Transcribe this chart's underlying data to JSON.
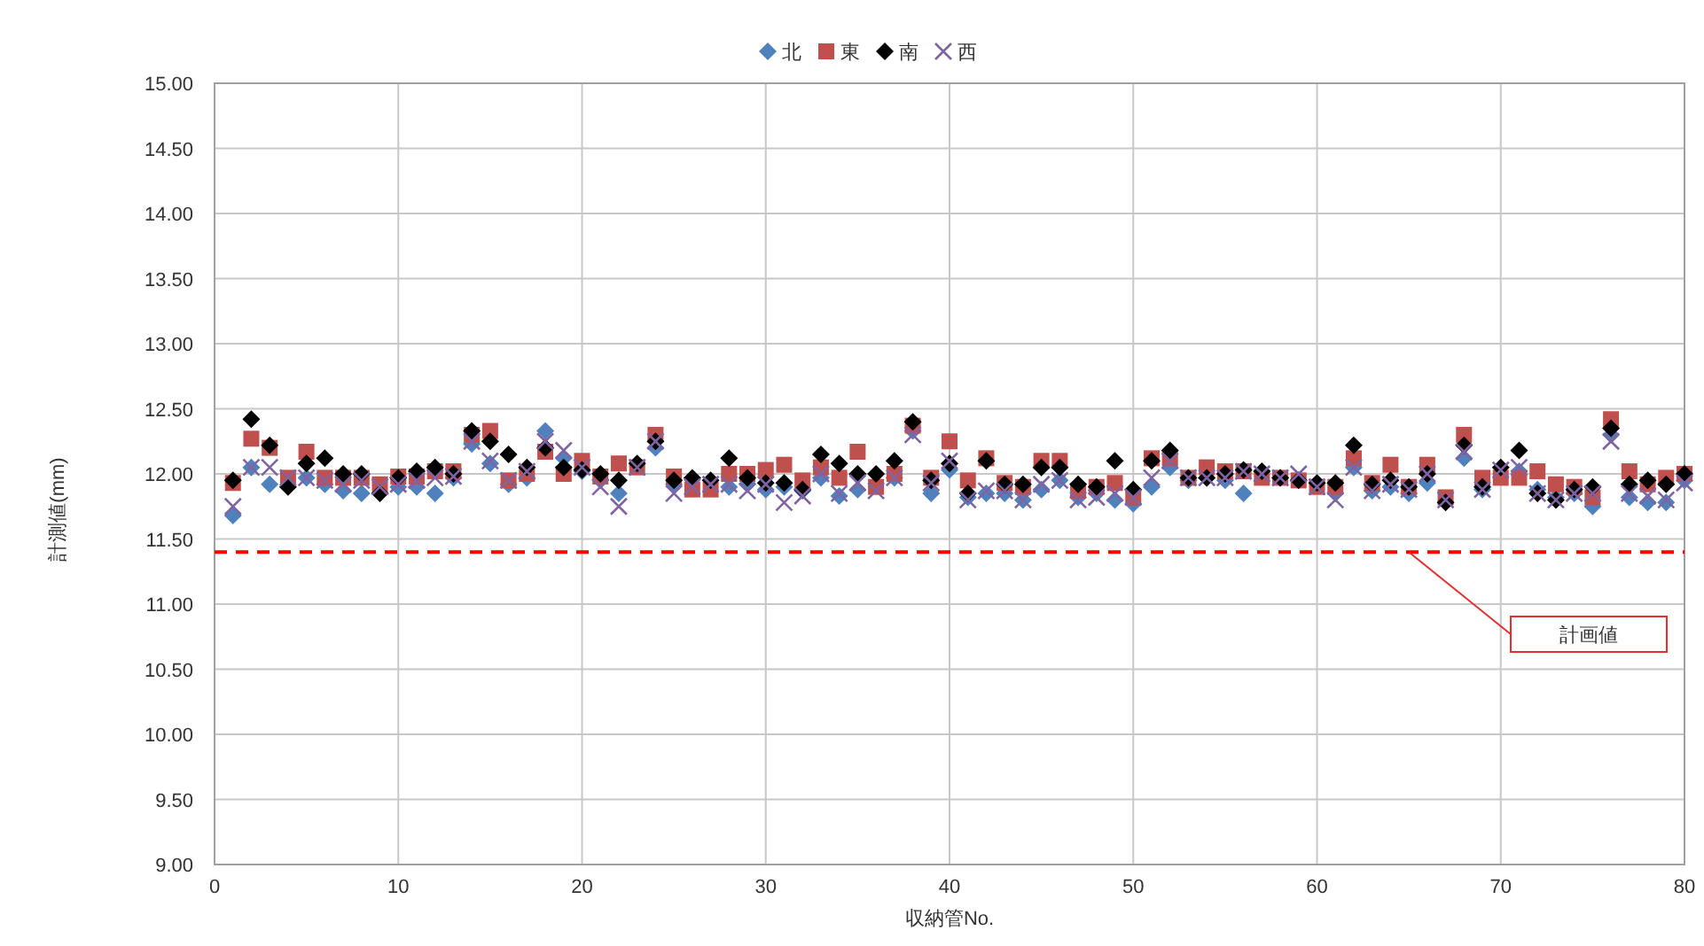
{
  "chart_data": {
    "type": "scatter",
    "xlabel": "収納管No.",
    "ylabel": "計測値(mm)",
    "xlim": [
      0,
      80
    ],
    "xticks": [
      0,
      10,
      20,
      30,
      40,
      50,
      60,
      70,
      80
    ],
    "ylim": [
      9,
      15
    ],
    "yticks": [
      {
        "value": 9,
        "label": "9.00"
      },
      {
        "value": 9.5,
        "label": "9.50"
      },
      {
        "value": 10,
        "label": "10.00"
      },
      {
        "value": 10.5,
        "label": "10.50"
      },
      {
        "value": 11,
        "label": "11.00"
      },
      {
        "value": 11.5,
        "label": "11.50"
      },
      {
        "value": 12,
        "label": "12.00"
      },
      {
        "value": 12.5,
        "label": "12.50"
      },
      {
        "value": 13,
        "label": "13.00"
      },
      {
        "value": 13.5,
        "label": "13.50"
      },
      {
        "value": 14,
        "label": "14.00"
      },
      {
        "value": 14.5,
        "label": "14.50"
      },
      {
        "value": 15,
        "label": "15.00"
      }
    ],
    "grid": true,
    "legend": "top",
    "x": [
      1,
      2,
      3,
      4,
      5,
      6,
      7,
      8,
      9,
      10,
      11,
      12,
      13,
      14,
      15,
      16,
      17,
      18,
      19,
      20,
      21,
      22,
      23,
      24,
      25,
      26,
      27,
      28,
      29,
      30,
      31,
      32,
      33,
      34,
      35,
      36,
      37,
      38,
      39,
      40,
      41,
      42,
      43,
      44,
      45,
      46,
      47,
      48,
      49,
      50,
      51,
      52,
      53,
      54,
      55,
      56,
      57,
      58,
      59,
      60,
      61,
      62,
      63,
      64,
      65,
      66,
      67,
      68,
      69,
      70,
      71,
      72,
      73,
      74,
      75,
      76,
      77,
      78,
      79,
      80
    ],
    "series": [
      {
        "name": "北",
        "color": "#4f81bd",
        "marker": "diamond",
        "values": [
          11.68,
          12.05,
          11.92,
          null,
          11.97,
          11.92,
          11.87,
          11.85,
          null,
          11.9,
          11.9,
          11.85,
          11.97,
          12.23,
          12.08,
          11.92,
          11.97,
          12.33,
          12.12,
          12.02,
          11.95,
          11.85,
          null,
          12.2,
          11.92,
          null,
          null,
          11.9,
          11.92,
          11.88,
          11.9,
          11.87,
          11.97,
          11.83,
          11.88,
          null,
          11.97,
          12.33,
          11.85,
          12.03,
          11.82,
          11.85,
          11.85,
          11.8,
          11.88,
          11.95,
          11.82,
          11.85,
          11.8,
          11.77,
          11.9,
          12.05,
          11.95,
          11.97,
          11.95,
          11.85,
          null,
          11.97,
          null,
          null,
          11.85,
          12.05,
          11.87,
          11.9,
          11.85,
          11.93,
          null,
          12.12,
          11.88,
          null,
          12.02,
          11.88,
          11.82,
          11.85,
          11.75,
          12.3,
          11.82,
          11.78,
          11.78,
          11.95
        ]
      },
      {
        "name": "東",
        "color": "#c0504d",
        "marker": "square",
        "values": [
          11.93,
          12.27,
          12.2,
          11.97,
          12.17,
          11.97,
          11.97,
          11.97,
          11.92,
          11.98,
          11.98,
          12.02,
          12.02,
          12.3,
          12.33,
          11.95,
          12.0,
          12.17,
          12.0,
          12.1,
          11.98,
          12.08,
          12.05,
          12.3,
          11.98,
          11.88,
          11.88,
          12.0,
          12.0,
          12.03,
          12.07,
          11.95,
          12.05,
          11.97,
          12.17,
          11.9,
          12.0,
          12.37,
          11.97,
          12.25,
          11.95,
          12.12,
          11.93,
          11.9,
          12.1,
          12.1,
          11.87,
          11.9,
          11.93,
          11.82,
          12.12,
          12.12,
          11.97,
          12.05,
          12.02,
          12.02,
          11.97,
          11.97,
          11.95,
          11.9,
          11.9,
          12.12,
          11.93,
          12.07,
          11.9,
          12.07,
          11.82,
          12.3,
          11.97,
          11.97,
          11.97,
          12.02,
          11.92,
          11.9,
          11.82,
          12.42,
          12.02,
          11.92,
          11.97,
          12.0
        ]
      },
      {
        "name": "南",
        "color": "#000000",
        "marker": "diamond",
        "values": [
          11.95,
          12.42,
          12.22,
          11.9,
          12.08,
          12.12,
          12.0,
          12.0,
          11.85,
          11.97,
          12.02,
          12.05,
          12.0,
          12.33,
          12.25,
          12.15,
          12.05,
          12.2,
          12.05,
          12.03,
          12.0,
          11.95,
          12.08,
          12.25,
          11.95,
          11.97,
          11.95,
          12.12,
          11.97,
          11.93,
          11.93,
          11.88,
          12.15,
          12.08,
          12.0,
          12.0,
          12.1,
          12.4,
          11.95,
          12.08,
          11.85,
          12.1,
          11.92,
          11.92,
          12.05,
          12.05,
          11.92,
          11.9,
          12.1,
          11.88,
          12.1,
          12.18,
          11.97,
          11.97,
          12.0,
          12.03,
          12.02,
          11.97,
          11.95,
          11.93,
          11.93,
          12.22,
          11.92,
          11.95,
          11.9,
          12.0,
          11.78,
          12.22,
          11.9,
          12.05,
          12.18,
          11.85,
          11.8,
          11.88,
          11.9,
          12.35,
          11.92,
          11.95,
          11.92,
          12.0
        ]
      },
      {
        "name": "西",
        "color": "#8064a2",
        "marker": "cross",
        "values": [
          11.75,
          12.05,
          12.05,
          11.97,
          11.97,
          11.95,
          11.92,
          11.95,
          11.9,
          11.92,
          11.95,
          11.97,
          11.98,
          12.25,
          12.1,
          11.95,
          12.02,
          12.25,
          12.18,
          12.05,
          11.9,
          11.75,
          12.05,
          12.25,
          11.85,
          11.9,
          11.92,
          11.92,
          11.87,
          11.92,
          11.78,
          11.83,
          12.0,
          11.85,
          11.93,
          11.87,
          11.97,
          12.3,
          11.93,
          12.1,
          11.8,
          11.87,
          11.87,
          11.8,
          11.92,
          11.95,
          11.8,
          11.82,
          11.85,
          11.82,
          11.97,
          12.1,
          11.97,
          11.97,
          11.97,
          12.02,
          12.0,
          11.97,
          12.0,
          11.9,
          11.8,
          12.05,
          11.87,
          11.92,
          11.88,
          12.0,
          11.8,
          12.17,
          11.88,
          12.03,
          12.05,
          11.85,
          11.8,
          11.85,
          11.85,
          12.25,
          11.85,
          11.83,
          11.8,
          11.93
        ]
      }
    ],
    "ref_lines": [
      {
        "axis": "y",
        "value": 11.4,
        "color": "#ff0000",
        "line_style": "dashed"
      }
    ],
    "annotations": [
      "計画値"
    ]
  }
}
